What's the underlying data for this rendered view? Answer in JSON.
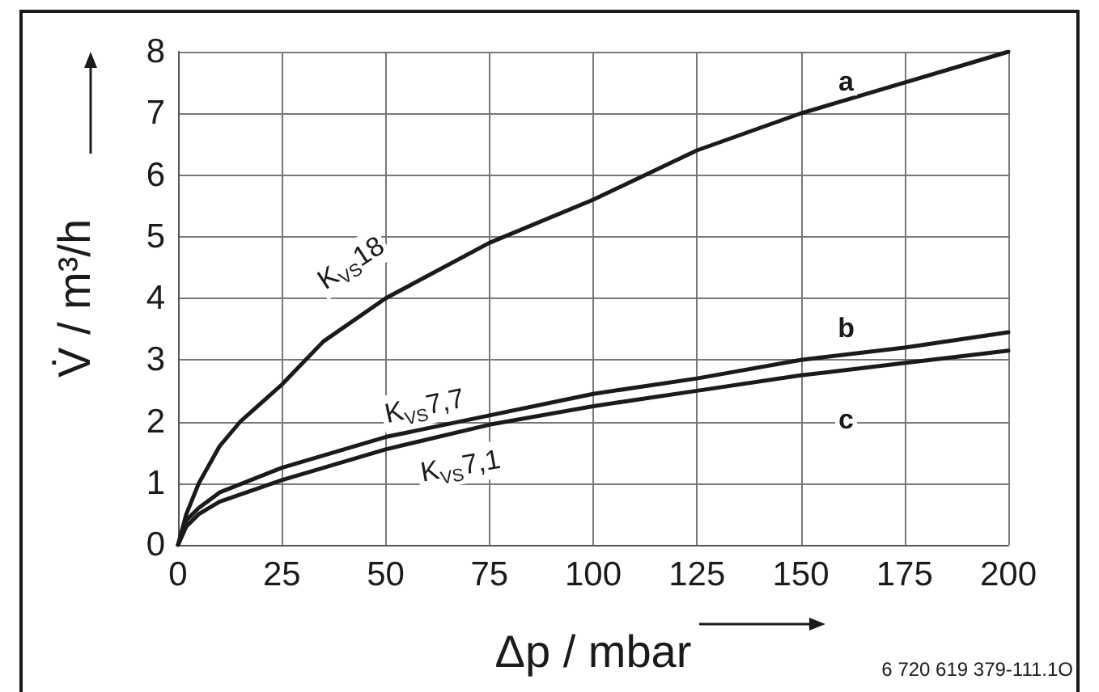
{
  "chart_data": {
    "type": "line",
    "xlabel": "Δp / mbar",
    "ylabel": "V̇ / m³/h",
    "xlim": [
      0,
      200
    ],
    "xticks": [
      0,
      25,
      50,
      75,
      100,
      125,
      150,
      175,
      200
    ],
    "ylim": [
      0,
      8
    ],
    "yticks": [
      0,
      1,
      2,
      3,
      4,
      5,
      6,
      7,
      8
    ],
    "grid": true,
    "legend": false,
    "marker": "none",
    "line_style": "solid",
    "series": [
      {
        "name": "a",
        "color": "#1a1a1a",
        "x": [
          0,
          2,
          5,
          10,
          15,
          20,
          25,
          35,
          50,
          75,
          100,
          125,
          150,
          175,
          200
        ],
        "values": [
          0,
          0.5,
          1.0,
          1.6,
          2.0,
          2.3,
          2.6,
          3.3,
          4.0,
          4.9,
          5.6,
          6.4,
          7.0,
          7.5,
          8.0
        ]
      },
      {
        "name": "b",
        "color": "#1a1a1a",
        "x": [
          0,
          2,
          5,
          10,
          25,
          50,
          75,
          100,
          125,
          150,
          175,
          200
        ],
        "values": [
          0,
          0.4,
          0.6,
          0.85,
          1.25,
          1.75,
          2.1,
          2.45,
          2.7,
          3.0,
          3.2,
          3.45
        ]
      },
      {
        "name": "c",
        "color": "#1a1a1a",
        "x": [
          0,
          2,
          5,
          10,
          25,
          50,
          75,
          100,
          125,
          150,
          175,
          200
        ],
        "values": [
          0,
          0.3,
          0.5,
          0.7,
          1.05,
          1.55,
          1.95,
          2.25,
          2.5,
          2.75,
          2.95,
          3.15
        ]
      }
    ],
    "annotations": [
      "K$_{VS}$18",
      "K$_{VS}$7,7",
      "K$_{VS}$7,1",
      "6 720 619 379-111.1O"
    ]
  }
}
